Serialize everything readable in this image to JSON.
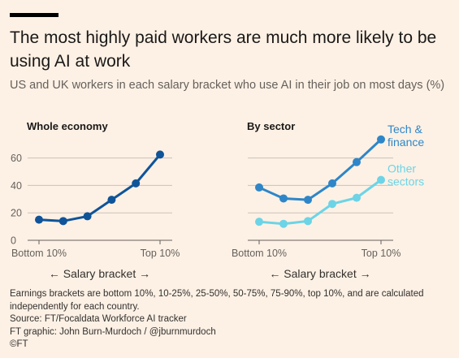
{
  "header": {
    "title": "The most highly paid workers are much more likely to be using AI at work",
    "subtitle": "US and UK workers in each salary bracket who use AI in their job on most days (%)"
  },
  "footer": {
    "note": "Earnings brackets are bottom 10%, 10-25%, 25-50%, 50-75%, 75-90%, top 10%, and are calculated independently for each country.",
    "source": "Source: FT/Focaldata Workforce AI tracker",
    "credit": "FT graphic: John Burn-Murdoch / @jburnmurdoch",
    "copyright": "©FT"
  },
  "colors": {
    "whole_economy": "#0f5499",
    "tech_finance": "#2e86c8",
    "other_sectors": "#6cd4e6",
    "background": "#fdf1e5",
    "gridline": "#ccc1b7"
  },
  "chart_data": [
    {
      "type": "line",
      "title": "Whole economy",
      "categories": [
        "",
        "",
        "",
        "",
        "",
        ""
      ],
      "category_tick_labels": [
        "Bottom 10%",
        "Top 10%"
      ],
      "xlabel": "← Salary bracket →",
      "ylabel": "",
      "yticks": [
        0,
        20,
        40,
        60
      ],
      "ylim": [
        0,
        65
      ],
      "grid": true,
      "series": [
        {
          "name": "",
          "values": [
            15,
            14,
            17.5,
            29.5,
            41.5,
            62.5
          ]
        }
      ]
    },
    {
      "type": "line",
      "title": "By sector",
      "categories": [
        "",
        "",
        "",
        "",
        "",
        ""
      ],
      "category_tick_labels": [
        "Bottom 10%",
        "Top 10%"
      ],
      "xlabel": "← Salary bracket →",
      "ylabel": "",
      "ylim": [
        0,
        65
      ],
      "grid": true,
      "legend": "right",
      "series": [
        {
          "name": "Tech & finance",
          "label_lines": [
            "Tech &",
            "finance"
          ],
          "values": [
            38.5,
            30.5,
            29.5,
            41.5,
            57,
            73.5
          ]
        },
        {
          "name": "Other sectors",
          "label_lines": [
            "Other",
            "sectors"
          ],
          "values": [
            13.5,
            12,
            14,
            26.5,
            31,
            44
          ]
        }
      ]
    }
  ]
}
